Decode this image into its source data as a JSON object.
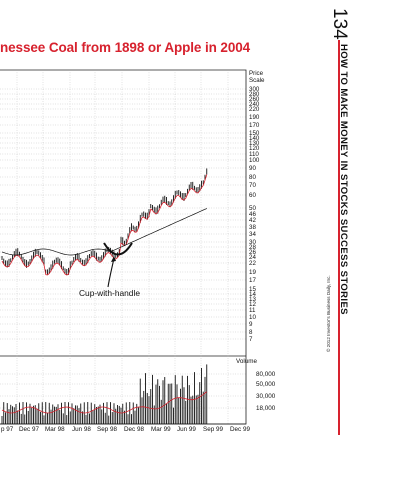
{
  "header": {
    "title": "nessee Coal from 1898 or Apple in 2004",
    "page_number": "134",
    "running_head": "HOW TO MAKE MONEY IN STOCKS SUCCESS STORIES"
  },
  "copyright": "© 2012 Investor's Business Daily, Inc.",
  "chart_data": {
    "type": "line",
    "price_scale_label": "Price Scale",
    "price_ticks": [
      "300",
      "280",
      "260",
      "240",
      "220",
      "190",
      "170",
      "150",
      "140",
      "130",
      "120",
      "110",
      "100",
      "90",
      "80",
      "70",
      "60",
      "50",
      "46",
      "42",
      "38",
      "34",
      "30",
      "28",
      "26",
      "24",
      "22",
      "19",
      "17",
      "15",
      "14",
      "13",
      "12",
      "11",
      "10",
      "9",
      "8",
      "7"
    ],
    "x": [
      "p 97",
      "Dec 97",
      "Mar 98",
      "Jun 98",
      "Sep 98",
      "Dec 98",
      "Mar 99",
      "Jun 99",
      "Sep 99",
      "Dec 99"
    ],
    "annotation": "Cup-with-handle",
    "volume_label": "Volume",
    "volume_ticks": [
      "80,000",
      "50,000",
      "30,000",
      "18,000"
    ],
    "series": [],
    "colors": {
      "accent": "#d7222e",
      "price_bars": "#111111",
      "moving_avg_short": "#d7222e",
      "moving_avg_long": "#111111"
    }
  }
}
